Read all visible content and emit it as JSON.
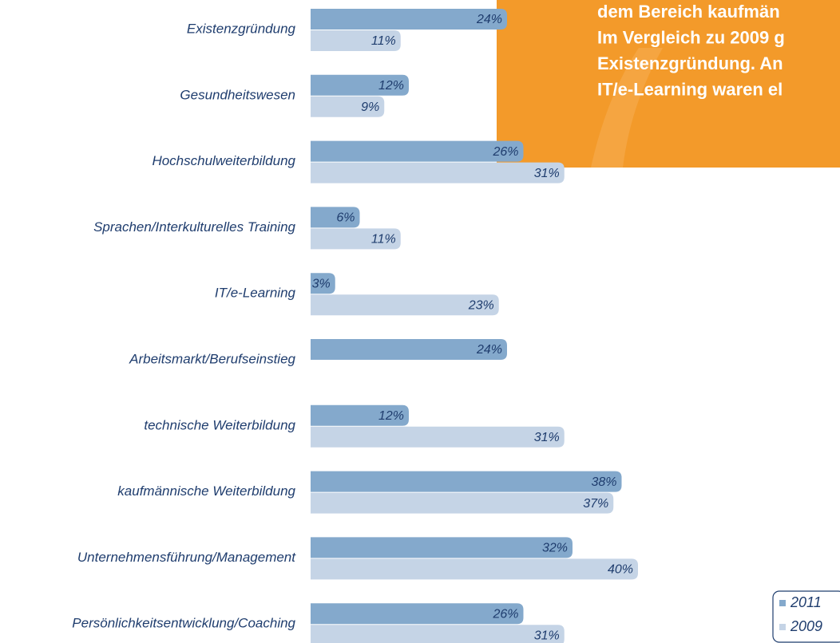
{
  "chart_data": {
    "type": "bar",
    "orientation": "horizontal",
    "annotation": [
      "dem Bereich kaufmän",
      "Im Vergleich zu 2009 g",
      "Existenzgründung. An",
      "IT/e-Learning waren el"
    ],
    "categories": [
      "Existenzgründung",
      "Gesundheitswesen",
      "Hochschulweiterbildung",
      "Sprachen/Interkulturelles Training",
      "IT/e-Learning",
      "Arbeitsmarkt/Berufseinstieg",
      "technische Weiterbildung",
      "kaufmännische Weiterbildung",
      "Unternehmensführung/Management",
      "Persönlichkeitsentwicklung/Coaching"
    ],
    "series": [
      {
        "name": "2011",
        "color": "#84a9cc",
        "values": [
          24,
          12,
          26,
          6,
          3,
          24,
          12,
          38,
          32,
          26
        ],
        "value_labels": [
          "24%",
          "12%",
          "26%",
          "6%",
          "3%",
          "24%",
          "12%",
          "38%",
          "32%",
          "26%"
        ]
      },
      {
        "name": "2009",
        "color": "#c5d4e6",
        "values": [
          11,
          9,
          31,
          11,
          23,
          null,
          31,
          37,
          40,
          31
        ],
        "value_labels": [
          "11%",
          "9%",
          "31%",
          "11%",
          "23%",
          null,
          "31%",
          "37%",
          "40%",
          "31%"
        ]
      }
    ],
    "legend": "bottom-right"
  }
}
